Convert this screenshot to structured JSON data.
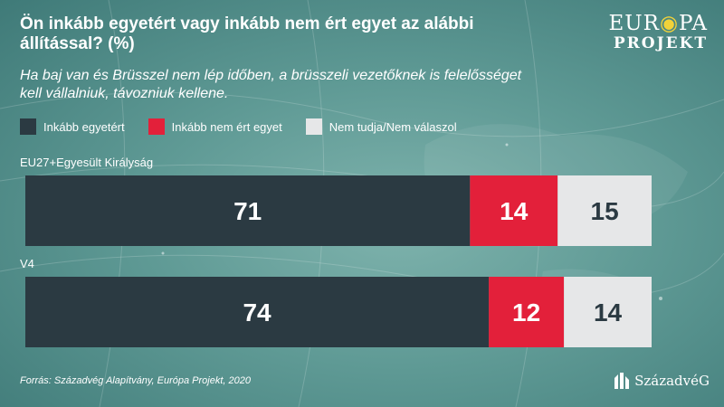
{
  "header": {
    "title": "Ön inkább egyetért vagy inkább nem ért egyet az alábbi állítással? (%)",
    "subtitle": "Ha baj van és Brüsszel nem lép időben, a brüsszeli vezetőknek is felelősséget kell vállalniuk, távozniuk kellene."
  },
  "logo": {
    "line1_a": "EUR",
    "line1_b": "PA",
    "line2": "PROJEKT"
  },
  "footer": {
    "source": "Forrás: Századvég Alapítvány, Európa Projekt, 2020",
    "brand": "SzázadvéG"
  },
  "colors": {
    "agree": "#2b3a42",
    "disagree": "#e3203a",
    "dontknow": "#e6e7e8",
    "agree_text": "#ffffff",
    "disagree_text": "#ffffff",
    "dontknow_text": "#2b3a42"
  },
  "chart_data": {
    "type": "bar",
    "orientation": "horizontal",
    "stacked": true,
    "categories": [
      "EU27+Egyesült Királyság",
      "V4"
    ],
    "series": [
      {
        "name": "Inkább egyetért",
        "values": [
          71,
          74
        ]
      },
      {
        "name": "Inkább nem ért egyet",
        "values": [
          14,
          12
        ]
      },
      {
        "name": "Nem tudja/Nem válaszol",
        "values": [
          15,
          14
        ]
      }
    ],
    "title": "Ön inkább egyetért vagy inkább nem ért egyet az alábbi állítással? (%)",
    "xlim": [
      0,
      100
    ],
    "legend_position": "top-left",
    "grid": false
  }
}
